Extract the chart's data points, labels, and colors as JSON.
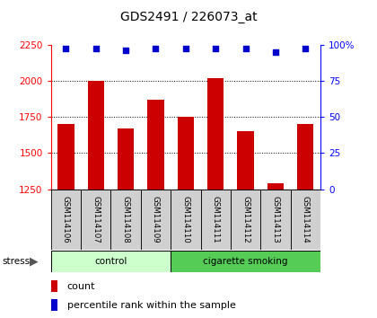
{
  "title": "GDS2491 / 226073_at",
  "samples": [
    "GSM114106",
    "GSM114107",
    "GSM114108",
    "GSM114109",
    "GSM114110",
    "GSM114111",
    "GSM114112",
    "GSM114113",
    "GSM114114"
  ],
  "counts": [
    1700,
    2000,
    1670,
    1870,
    1750,
    2020,
    1650,
    1290,
    1700
  ],
  "percentiles": [
    97,
    97,
    96,
    97,
    97,
    97,
    97,
    95,
    97
  ],
  "groups": [
    {
      "label": "control",
      "start": 0,
      "end": 4,
      "color": "#ccffcc"
    },
    {
      "label": "cigarette smoking",
      "start": 4,
      "end": 9,
      "color": "#55cc55"
    }
  ],
  "stress_label": "stress",
  "ylim_left": [
    1250,
    2250
  ],
  "ylim_right": [
    0,
    100
  ],
  "yticks_left": [
    1250,
    1500,
    1750,
    2000,
    2250
  ],
  "yticks_right": [
    0,
    25,
    50,
    75,
    100
  ],
  "bar_color": "#cc0000",
  "dot_color": "#0000cc",
  "bar_width": 0.55,
  "plot_bg": "#ffffff",
  "legend_count_label": "count",
  "legend_pct_label": "percentile rank within the sample",
  "title_fontsize": 10,
  "tick_fontsize": 7.5,
  "label_fontsize": 8
}
